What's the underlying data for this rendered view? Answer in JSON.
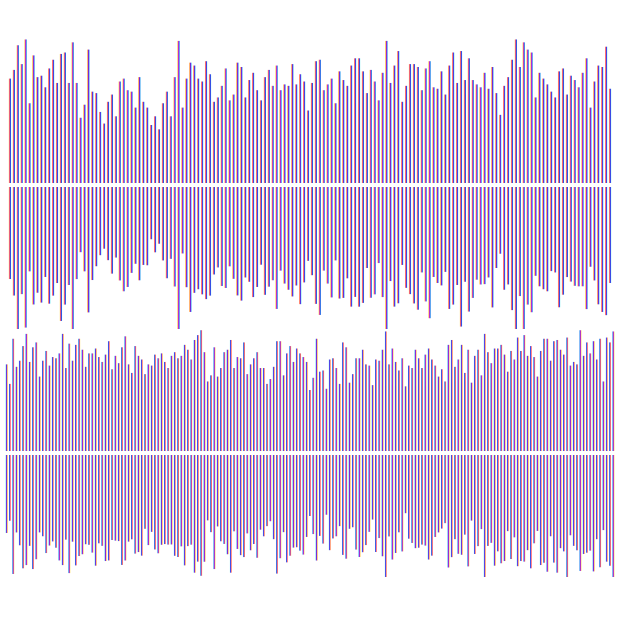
{
  "artwork": {
    "gradient_colors": [
      "#ffd21f",
      "#ff9a1c",
      "#ff2fc6",
      "#8d2de2",
      "#2d1fd6",
      "#1f73ee",
      "#2fe6ee"
    ],
    "background_color": "#ffffff",
    "divider_color": "#ffffff"
  },
  "waveforms": [
    {
      "direction": "warm-to-cool",
      "levels": [
        0.72,
        0.78,
        0.95,
        0.82,
        0.99,
        0.55,
        0.88,
        0.73,
        0.74,
        0.66,
        0.79,
        0.85,
        0.69,
        0.89,
        0.9,
        0.69,
        0.97,
        0.69,
        0.45,
        0.54,
        0.92,
        0.63,
        0.62,
        0.49,
        0.41,
        0.56,
        0.61,
        0.46,
        0.7,
        0.72,
        0.64,
        0.63,
        0.52,
        0.73,
        0.56,
        0.52,
        0.4,
        0.46,
        0.37,
        0.55,
        0.63,
        0.46,
        0.73,
        0.98,
        0.52,
        0.72,
        0.83,
        0.81,
        0.72,
        0.7,
        0.84,
        0.75,
        0.56,
        0.59,
        0.67,
        0.79,
        0.57,
        0.61,
        0.83,
        0.8,
        0.59,
        0.71,
        0.76,
        0.64,
        0.57,
        0.73,
        0.78,
        0.67,
        0.81,
        0.64,
        0.68,
        0.67,
        0.82,
        0.68,
        0.75,
        0.7,
        0.5,
        0.69,
        0.84,
        0.85,
        0.64,
        0.68,
        0.72,
        0.55,
        0.77,
        0.71,
        0.67,
        0.81,
        0.86,
        0.86,
        0.77,
        0.62,
        0.78,
        0.7,
        0.57,
        0.76,
        0.98,
        0.69,
        0.81,
        0.91,
        0.56,
        0.67,
        0.82,
        0.82,
        0.8,
        0.64,
        0.79,
        0.84,
        0.66,
        0.65,
        0.77,
        0.61,
        0.81,
        0.9,
        0.69,
        0.91,
        0.71,
        0.86,
        0.71,
        0.68,
        0.66,
        0.76,
        0.65,
        0.8,
        0.62,
        0.47,
        0.67,
        0.73,
        0.85,
        0.99,
        0.8,
        0.97,
        0.92,
        0.9,
        0.59,
        0.76,
        0.72,
        0.68,
        0.63,
        0.59,
        0.77,
        0.79,
        0.61,
        0.74,
        0.71,
        0.66,
        0.76,
        0.86,
        0.52,
        0.7,
        0.81,
        0.8,
        0.94,
        0.65
      ]
    },
    {
      "direction": "cool-to-warm",
      "levels": [
        0.71,
        0.55,
        0.92,
        0.69,
        0.74,
        0.86,
        0.96,
        0.73,
        0.85,
        0.89,
        0.61,
        0.74,
        0.82,
        0.7,
        0.77,
        0.76,
        0.8,
        0.96,
        0.68,
        0.88,
        0.74,
        0.87,
        0.92,
        0.83,
        0.69,
        0.8,
        0.8,
        0.84,
        0.77,
        0.73,
        0.79,
        0.9,
        0.67,
        0.78,
        0.72,
        0.85,
        0.94,
        0.71,
        0.64,
        0.86,
        0.78,
        0.75,
        0.63,
        0.71,
        0.7,
        0.79,
        0.76,
        0.8,
        0.73,
        0.68,
        0.78,
        0.81,
        0.76,
        0.78,
        0.87,
        0.83,
        0.75,
        0.91,
        0.95,
        0.99,
        0.81,
        0.57,
        0.62,
        0.85,
        0.61,
        0.68,
        0.81,
        0.83,
        0.91,
        0.68,
        0.77,
        0.76,
        0.89,
        0.63,
        0.71,
        0.76,
        0.81,
        0.68,
        0.68,
        0.55,
        0.59,
        0.69,
        0.9,
        0.9,
        0.62,
        0.8,
        0.86,
        0.73,
        0.84,
        0.8,
        0.77,
        0.73,
        0.5,
        0.6,
        0.92,
        0.65,
        0.66,
        0.51,
        0.75,
        0.76,
        0.68,
        0.55,
        0.89,
        0.85,
        0.56,
        0.63,
        0.76,
        0.76,
        0.83,
        0.71,
        0.7,
        0.54,
        0.75,
        0.74,
        0.83,
        0.98,
        0.71,
        0.84,
        0.73,
        0.66,
        0.76,
        0.53,
        0.7,
        0.68,
        0.83,
        0.76,
        0.68,
        0.79,
        0.84,
        0.75,
        0.7,
        0.61,
        0.67,
        0.57,
        0.87,
        0.91,
        0.69,
        0.75,
        0.87,
        0.64,
        0.83,
        0.56,
        0.78,
        0.83,
        0.62,
        0.96,
        0.81,
        0.72,
        0.84,
        0.84,
        0.87,
        0.79,
        0.65,
        0.82,
        0.75,
        0.93,
        0.82,
        0.95,
        0.78,
        0.86,
        0.77,
        0.61,
        0.82,
        0.92,
        0.92,
        0.74,
        0.9,
        0.91,
        0.83,
        0.79,
        0.93,
        0.7,
        0.73,
        0.71,
        0.99,
        0.78,
        0.89,
        0.8,
        0.9,
        0.75,
        0.92,
        0.57,
        0.93,
        0.89,
        0.98
      ]
    }
  ]
}
